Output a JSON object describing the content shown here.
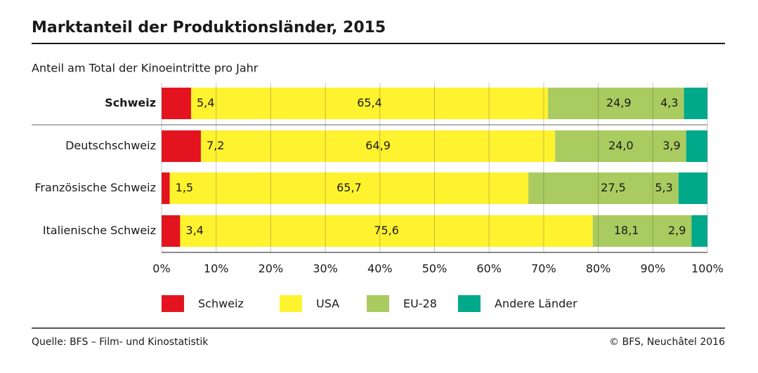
{
  "chart_data": {
    "type": "stacked-barh",
    "title": "Marktanteil der Produktionsländer, 2015",
    "subtitle": "Anteil am Total der Kinoeintritte pro Jahr",
    "categories": [
      "Schweiz",
      "Deutschschweiz",
      "Französische Schweiz",
      "Italienische Schweiz"
    ],
    "series": [
      {
        "name": "Schweiz",
        "color": "#e3141f",
        "values": [
          5.4,
          7.2,
          1.5,
          3.4
        ],
        "value_labels": [
          "5,4",
          "7,2",
          "1,5",
          "3,4"
        ]
      },
      {
        "name": "USA",
        "color": "#fff22e",
        "values": [
          65.4,
          64.9,
          65.7,
          75.6
        ],
        "value_labels": [
          "65,4",
          "64,9",
          "65,7",
          "75,6"
        ]
      },
      {
        "name": "EU-28",
        "color": "#a9cb5f",
        "values": [
          24.9,
          24.0,
          27.5,
          18.1
        ],
        "value_labels": [
          "24,9",
          "24,0",
          "27,5",
          "18,1"
        ]
      },
      {
        "name": "Andere Länder",
        "color": "#00a98a",
        "values": [
          4.3,
          3.9,
          5.3,
          2.9
        ],
        "value_labels": [
          "4,3",
          "3,9",
          "5,3",
          "2,9"
        ]
      }
    ],
    "xlim": [
      0,
      100
    ],
    "xticks": [
      {
        "value": 0,
        "label": "0%"
      },
      {
        "value": 10,
        "label": "10%"
      },
      {
        "value": 20,
        "label": "20%"
      },
      {
        "value": 30,
        "label": "30%"
      },
      {
        "value": 40,
        "label": "40%"
      },
      {
        "value": 50,
        "label": "50%"
      },
      {
        "value": 60,
        "label": "60%"
      },
      {
        "value": 70,
        "label": "70%"
      },
      {
        "value": 80,
        "label": "80%"
      },
      {
        "value": 90,
        "label": "90%"
      },
      {
        "value": 100,
        "label": "100%"
      }
    ],
    "grid": true,
    "source": "Quelle: BFS – Film- und Kinostatistik",
    "copyright": "© BFS, Neuchâtel 2016"
  }
}
